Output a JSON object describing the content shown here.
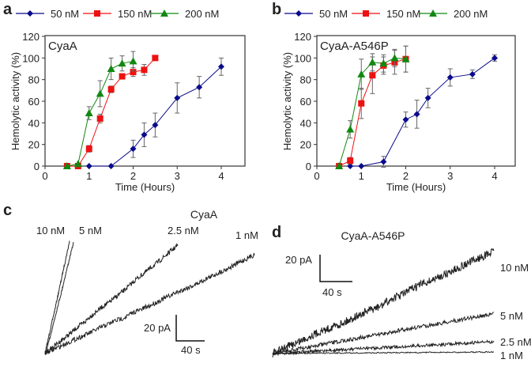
{
  "colors": {
    "50 nM": "#0a0a8c",
    "150 nM": "#ee1111",
    "200 nM": "#118811",
    "trace": "#222222"
  },
  "chart_data": [
    {
      "panel": "a",
      "type": "line",
      "title": "CyaA",
      "xlabel": "Time (Hours)",
      "ylabel": "Hemolytic activity (%)",
      "xlim": [
        0,
        4.5
      ],
      "ylim": [
        0,
        120
      ],
      "xticks": [
        0,
        1,
        2,
        3,
        4
      ],
      "yticks": [
        0,
        20,
        40,
        60,
        80,
        100,
        120
      ],
      "legend": "top",
      "series": [
        {
          "name": "50 nM",
          "marker": "diamond",
          "x": [
            1,
            1.5,
            2,
            2.25,
            2.5,
            3,
            3.5,
            4
          ],
          "y": [
            0,
            0,
            16,
            29,
            38,
            63,
            73,
            92
          ],
          "err": [
            0,
            0,
            8,
            11,
            11,
            14,
            10,
            8
          ]
        },
        {
          "name": "150 nM",
          "marker": "square",
          "x": [
            0.5,
            0.75,
            1,
            1.25,
            1.5,
            1.75,
            2,
            2.25,
            2.5
          ],
          "y": [
            0,
            0,
            16,
            44,
            71,
            83,
            87,
            89,
            100
          ],
          "err": [
            0,
            0,
            3,
            4,
            3,
            2,
            4,
            5,
            2
          ]
        },
        {
          "name": "200 nM",
          "marker": "triangle",
          "x": [
            0.5,
            0.75,
            1,
            1.25,
            1.5,
            1.75,
            2
          ],
          "y": [
            0,
            2,
            49,
            67,
            90,
            95,
            97
          ],
          "err": [
            0,
            0,
            6,
            12,
            10,
            7,
            9
          ]
        }
      ]
    },
    {
      "panel": "b",
      "type": "line",
      "title": "CyaA-A546P",
      "xlabel": "Time (Hours)",
      "ylabel": "Hemolytic activity (%)",
      "xlim": [
        0,
        4.5
      ],
      "ylim": [
        0,
        120
      ],
      "xticks": [
        0,
        1,
        2,
        3,
        4
      ],
      "yticks": [
        0,
        20,
        40,
        60,
        80,
        100,
        120
      ],
      "legend": "top",
      "series": [
        {
          "name": "50 nM",
          "marker": "diamond",
          "x": [
            0.75,
            1,
            1.5,
            2,
            2.25,
            2.5,
            3,
            3.5,
            4
          ],
          "y": [
            0,
            0,
            4,
            43,
            48,
            63,
            82,
            85,
            100
          ],
          "err": [
            0,
            0,
            5,
            7,
            13,
            9,
            8,
            4,
            3
          ]
        },
        {
          "name": "150 nM",
          "marker": "square",
          "x": [
            0.5,
            0.75,
            1,
            1.25,
            1.5,
            1.75,
            2
          ],
          "y": [
            0,
            5,
            58,
            84,
            93,
            96,
            99
          ],
          "err": [
            0,
            3,
            14,
            17,
            8,
            11,
            12
          ]
        },
        {
          "name": "200 nM",
          "marker": "triangle",
          "x": [
            0.5,
            0.75,
            1,
            1.25,
            1.5,
            1.75,
            2
          ],
          "y": [
            0,
            34,
            85,
            96,
            95,
            100,
            99
          ],
          "err": [
            0,
            8,
            14,
            8,
            8,
            8,
            12
          ]
        }
      ]
    }
  ],
  "traces": {
    "c": {
      "label": "c",
      "title": "CyaA",
      "scale_current": "20 pA",
      "scale_time": "40 s",
      "traces": [
        "10 nM",
        "5 nM",
        "2.5 nM",
        "1 nM"
      ]
    },
    "d": {
      "label": "d",
      "title": "CyaA-A546P",
      "scale_current": "20 pA",
      "scale_time": "40 s",
      "traces": [
        "10 nM",
        "5 nM",
        "2.5 nM",
        "1 nM"
      ]
    }
  }
}
